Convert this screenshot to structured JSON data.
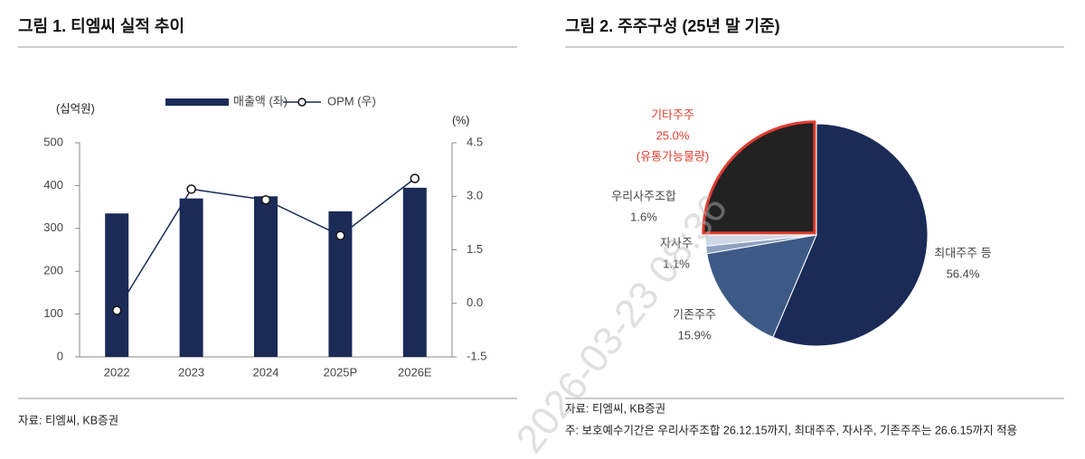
{
  "watermark": "2026-03-23 08:36",
  "chart_data": [
    {
      "type": "bar-line",
      "title": "그림 1. 티엠씨 실적 추이",
      "source": "자료: 티엠씨, KB증권",
      "y_label": "(십억원)",
      "y2_label": "(%)",
      "categories": [
        "2022",
        "2023",
        "2024",
        "2025P",
        "2026E"
      ],
      "series": [
        {
          "name": "매출액 (좌)",
          "color": "#1b2b57",
          "type": "bar",
          "values": [
            335,
            370,
            375,
            340,
            395
          ]
        },
        {
          "name": "OPM (우)",
          "color": "#1b2b57",
          "type": "line",
          "axis": "y2",
          "values": [
            -0.2,
            3.2,
            2.9,
            1.9,
            3.5
          ]
        }
      ],
      "ylim": [
        0,
        500
      ],
      "yticks": [
        0,
        100,
        200,
        300,
        400,
        500
      ],
      "y2lim": [
        -1.5,
        4.5
      ],
      "y2ticks": [
        -1.5,
        {
          "value": 0,
          "label": "0.0"
        },
        1.5,
        {
          "value": 3,
          "label": "3.0"
        },
        4.5
      ]
    },
    {
      "type": "pie",
      "title": "그림 2. 주주구성 (25년 말 기준)",
      "source": "자료: 티엠씨, KB증권",
      "note": "주: 보호예수기간은 우리사주조합 26.12.15까지, 최대주주, 자사주, 기존주주는 26.6.15까지 적용",
      "categories": [
        "최대주주 등",
        "기존주주",
        "자사주",
        "우리사주조합",
        "기타주주"
      ],
      "values": [
        56.4,
        15.9,
        1.1,
        1.6,
        25
      ],
      "value_labels": [
        "56.4%",
        "15.9%",
        "1.1%",
        "1.6%",
        "25.0%"
      ],
      "colors": [
        "#1b2b57",
        "#3d5a87",
        "#8ea2c0",
        "#cfd8e6",
        "#222222"
      ],
      "highlight": 4,
      "highlight_color": "#e03c2e",
      "annotation": "(유통가능물량)"
    }
  ]
}
